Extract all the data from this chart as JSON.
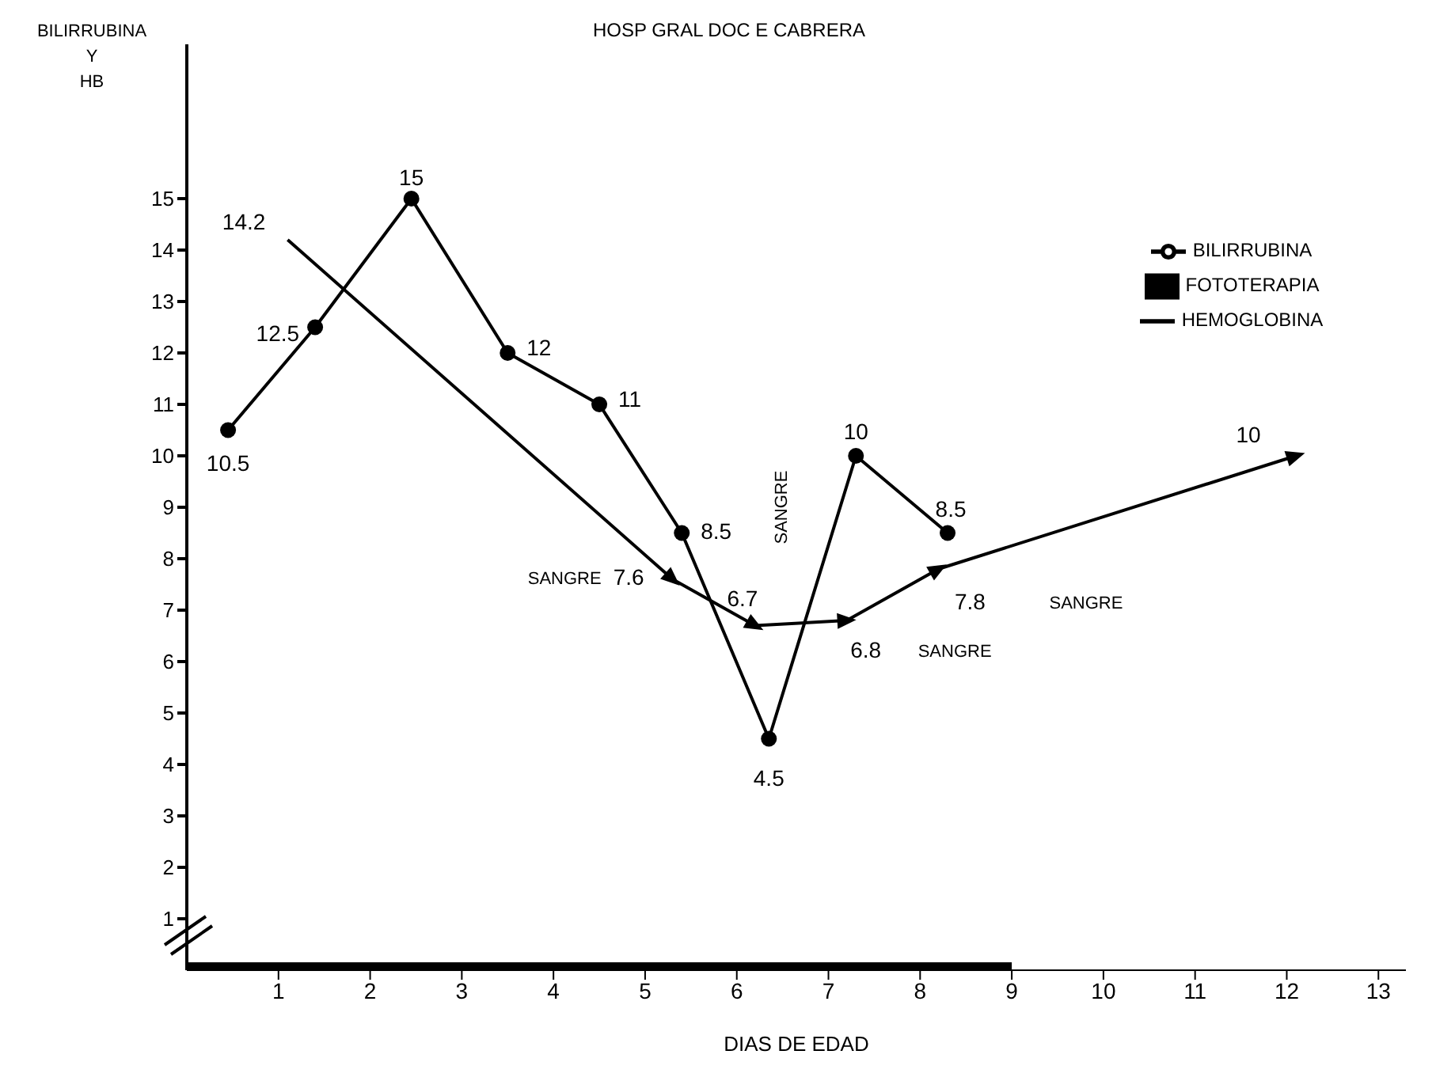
{
  "chart_data": {
    "type": "line",
    "title": "HOSP GRAL DOC E CABRERA",
    "xlabel": "DIAS DE EDAD",
    "ylabel": "BILIRRUBINA Y HB",
    "xlim": [
      0,
      13.3
    ],
    "xticks": [
      1,
      2,
      3,
      4,
      5,
      6,
      7,
      8,
      9,
      10,
      11,
      12,
      13
    ],
    "ylim": [
      0,
      18
    ],
    "yticks": [
      1,
      2,
      3,
      4,
      5,
      6,
      7,
      8,
      9,
      10,
      11,
      12,
      13,
      14,
      15
    ],
    "grid": false,
    "legend": "top right",
    "series": [
      {
        "name": "BILIRRUBINA",
        "color": "#000000",
        "marker": "circle",
        "x": [
          0.45,
          1.4,
          2.45,
          3.5,
          4.5,
          5.4,
          6.35,
          7.3,
          8.3
        ],
        "values": [
          10.5,
          12.5,
          15,
          12,
          11,
          8.5,
          4.5,
          10,
          8.5
        ],
        "value_labels": [
          "10.5",
          "12.5",
          "15",
          "12",
          "11",
          "8.5",
          "4.5",
          "10",
          "8.5"
        ]
      },
      {
        "name": "HEMOGLOBINA",
        "color": "#000000",
        "marker": "triangle",
        "x": [
          1.1,
          5.3,
          6.2,
          7.2,
          8.2,
          12.1
        ],
        "values": [
          14.2,
          7.6,
          6.7,
          6.8,
          7.8,
          10
        ],
        "value_labels": [
          "14.2",
          "7.6",
          "6.7",
          "6.8",
          "7.8",
          "10"
        ]
      },
      {
        "name": "FOTOTERAPIA",
        "color": "#000000",
        "marker": "none",
        "x": [
          0,
          9
        ],
        "values": [
          0,
          0
        ]
      }
    ],
    "annotations": [
      "SANGRE",
      "SANGRE",
      "SANGRE",
      "SANGRE"
    ]
  }
}
